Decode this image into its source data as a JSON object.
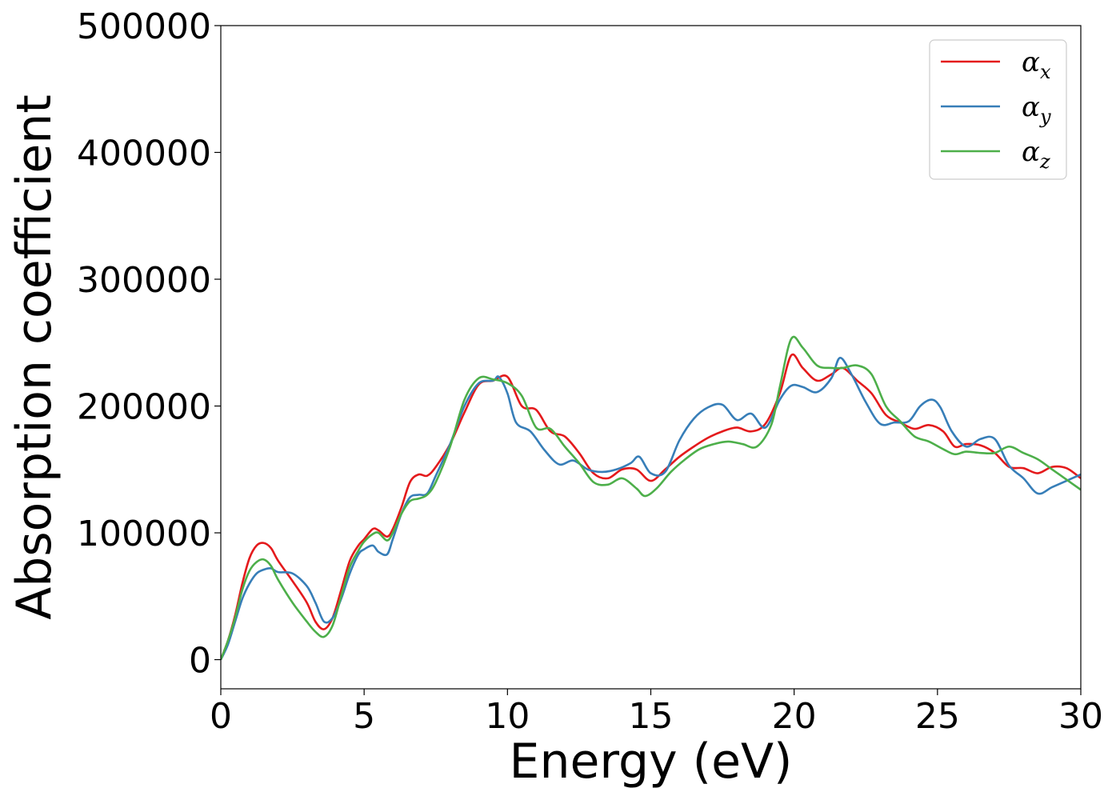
{
  "chart_data": {
    "type": "line",
    "title": "",
    "xlabel": "Energy (eV)",
    "ylabel": "Absorption coefficient",
    "xlim": [
      0,
      30
    ],
    "ylim": [
      -23000,
      500000
    ],
    "xticks": [
      0,
      5,
      10,
      15,
      20,
      25,
      30
    ],
    "yticks": [
      0,
      100000,
      200000,
      300000,
      400000,
      500000
    ],
    "grid": false,
    "legend_position": "top-right",
    "series": [
      {
        "name": "α",
        "subscript": "x",
        "color": "#e41a1c",
        "x": [
          0,
          0.25,
          0.5,
          0.75,
          1.0,
          1.25,
          1.5,
          1.75,
          2.0,
          2.5,
          3.0,
          3.3,
          3.6,
          3.9,
          4.2,
          4.5,
          4.8,
          5.0,
          5.3,
          5.5,
          5.8,
          6.0,
          6.3,
          6.6,
          6.9,
          7.2,
          7.5,
          8.0,
          8.5,
          9.0,
          9.5,
          10.0,
          10.5,
          11.0,
          11.5,
          12.0,
          12.5,
          13.0,
          13.5,
          14.0,
          14.5,
          15.0,
          15.5,
          16.0,
          16.5,
          17.0,
          17.5,
          18.0,
          18.5,
          19.0,
          19.5,
          19.9,
          20.3,
          20.8,
          21.3,
          21.7,
          22.2,
          22.7,
          23.2,
          23.7,
          24.2,
          24.7,
          25.2,
          25.6,
          26.0,
          26.5,
          27.0,
          27.5,
          28.0,
          28.5,
          29.0,
          29.5,
          30.0
        ],
        "values": [
          0,
          15000,
          35000,
          60000,
          80000,
          90000,
          92000,
          88000,
          78000,
          62000,
          45000,
          30000,
          24000,
          33000,
          55000,
          78000,
          90000,
          95000,
          103000,
          102000,
          97000,
          103000,
          120000,
          140000,
          146000,
          145000,
          152000,
          170000,
          195000,
          217000,
          220000,
          223000,
          200000,
          197000,
          180000,
          176000,
          163000,
          147000,
          143000,
          150000,
          150000,
          141000,
          150000,
          160000,
          168000,
          175000,
          180000,
          183000,
          180000,
          186000,
          210000,
          240000,
          230000,
          220000,
          225000,
          230000,
          220000,
          210000,
          193000,
          187000,
          182000,
          185000,
          180000,
          168000,
          170000,
          169000,
          163000,
          152000,
          151000,
          147000,
          152000,
          151000,
          143000
        ]
      },
      {
        "name": "α",
        "subscript": "y",
        "color": "#377eb8",
        "x": [
          0,
          0.25,
          0.5,
          0.75,
          1.0,
          1.25,
          1.5,
          1.75,
          2.0,
          2.5,
          3.0,
          3.3,
          3.6,
          3.9,
          4.2,
          4.5,
          4.8,
          5.0,
          5.3,
          5.5,
          5.8,
          6.0,
          6.3,
          6.6,
          6.9,
          7.2,
          7.5,
          8.0,
          8.5,
          9.0,
          9.5,
          9.7,
          10.0,
          10.3,
          10.8,
          11.3,
          11.8,
          12.3,
          12.8,
          13.3,
          13.8,
          14.3,
          14.6,
          15.0,
          15.5,
          16.0,
          16.5,
          17.0,
          17.5,
          18.0,
          18.5,
          19.0,
          19.5,
          19.9,
          20.3,
          20.8,
          21.3,
          21.6,
          22.0,
          22.5,
          23.0,
          23.5,
          24.0,
          24.4,
          24.8,
          25.1,
          25.5,
          26.0,
          26.5,
          27.0,
          27.5,
          28.0,
          28.5,
          29.0,
          29.5,
          30.0
        ],
        "values": [
          0,
          12000,
          30000,
          48000,
          60000,
          68000,
          71000,
          72000,
          69000,
          68000,
          58000,
          45000,
          30000,
          33000,
          48000,
          68000,
          83000,
          87000,
          90000,
          85000,
          83000,
          95000,
          115000,
          128000,
          130000,
          131000,
          145000,
          170000,
          200000,
          218000,
          220000,
          223000,
          210000,
          187000,
          180000,
          165000,
          154000,
          157000,
          150000,
          148000,
          150000,
          155000,
          160000,
          147000,
          148000,
          173000,
          190000,
          199000,
          201000,
          189000,
          194000,
          183000,
          205000,
          216000,
          215000,
          211000,
          222000,
          238000,
          225000,
          203000,
          186000,
          187000,
          188000,
          200000,
          205000,
          199000,
          180000,
          168000,
          174000,
          174000,
          153000,
          143000,
          131000,
          136000,
          141000,
          146000
        ]
      },
      {
        "name": "α",
        "subscript": "z",
        "color": "#4daf4a",
        "x": [
          0,
          0.25,
          0.5,
          0.75,
          1.0,
          1.25,
          1.5,
          1.75,
          2.0,
          2.5,
          3.0,
          3.3,
          3.6,
          3.9,
          4.2,
          4.5,
          4.8,
          5.0,
          5.3,
          5.5,
          5.8,
          6.0,
          6.3,
          6.6,
          6.9,
          7.2,
          7.5,
          8.0,
          8.5,
          9.0,
          9.5,
          10.0,
          10.5,
          11.0,
          11.5,
          12.0,
          12.5,
          13.0,
          13.5,
          14.0,
          14.5,
          14.8,
          15.2,
          15.7,
          16.2,
          16.7,
          17.2,
          17.7,
          18.2,
          18.7,
          19.2,
          19.5,
          19.9,
          20.3,
          20.8,
          21.3,
          21.7,
          22.2,
          22.7,
          23.2,
          23.7,
          24.2,
          24.7,
          25.2,
          25.6,
          26.0,
          26.5,
          27.0,
          27.5,
          28.0,
          28.5,
          29.0,
          29.5,
          30.0
        ],
        "values": [
          0,
          15000,
          33000,
          55000,
          70000,
          77000,
          79000,
          74000,
          63000,
          45000,
          30000,
          22000,
          18000,
          27000,
          50000,
          73000,
          86000,
          93000,
          99000,
          100000,
          94000,
          100000,
          115000,
          125000,
          127000,
          130000,
          140000,
          168000,
          205000,
          222000,
          221000,
          218000,
          208000,
          183000,
          182000,
          168000,
          155000,
          140000,
          138000,
          143000,
          135000,
          129000,
          135000,
          148000,
          158000,
          166000,
          170000,
          172000,
          170000,
          168000,
          185000,
          215000,
          253000,
          246000,
          232000,
          230000,
          230000,
          232000,
          225000,
          200000,
          188000,
          176000,
          172000,
          166000,
          162000,
          164000,
          163000,
          163000,
          168000,
          163000,
          158000,
          150000,
          142000,
          134000
        ]
      }
    ]
  }
}
